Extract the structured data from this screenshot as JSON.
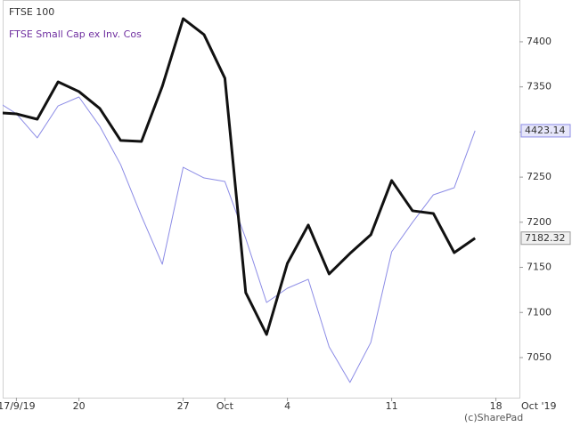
{
  "chart_data": {
    "type": "line",
    "categories": [
      null,
      "17/9/19",
      null,
      null,
      "20",
      null,
      null,
      null,
      null,
      "27",
      null,
      "Oct",
      null,
      null,
      "4",
      null,
      null,
      null,
      null,
      "11",
      null,
      null,
      null,
      null,
      "18"
    ],
    "series": [
      {
        "name": "FTSE 100",
        "color": "#111111",
        "values": [
          7321.6,
          7320.1,
          7314.2,
          7355.6,
          7344.8,
          7326.1,
          7290.6,
          7289.6,
          7350.7,
          7425.6,
          7407.9,
          7359.6,
          7122,
          7075.6,
          7154.5,
          7196.9,
          7142.7,
          7165.4,
          7186.1,
          7246.2,
          7212.7,
          7209.7,
          7166.3,
          7182.32,
          null
        ]
      },
      {
        "name": "FTSE Small Cap ex Inv. Cos",
        "color": "#8c8ce6",
        "axis": "y2",
        "values": [
          4443.8,
          4434.7,
          4418.3,
          4440.1,
          4446.2,
          4426.2,
          4400.0,
          4364.8,
          4332.0,
          4398.2,
          4390.9,
          4388.5,
          4349.6,
          4305.9,
          4315.6,
          4321.7,
          4275.6,
          4251.3,
          4278.6,
          4340.5,
          4360.6,
          4379.4,
          4384.2,
          4423.14,
          null
        ]
      }
    ],
    "ylim": [
      7005.6,
      7446.3
    ],
    "yticks": [
      7050,
      7100,
      7150,
      7200,
      7250,
      7300,
      7350,
      7400
    ],
    "y2lim": [
      4240.9,
      4512.4
    ],
    "grid": false,
    "annotations": [
      "Oct '19",
      "(c)SharePad"
    ]
  }
}
